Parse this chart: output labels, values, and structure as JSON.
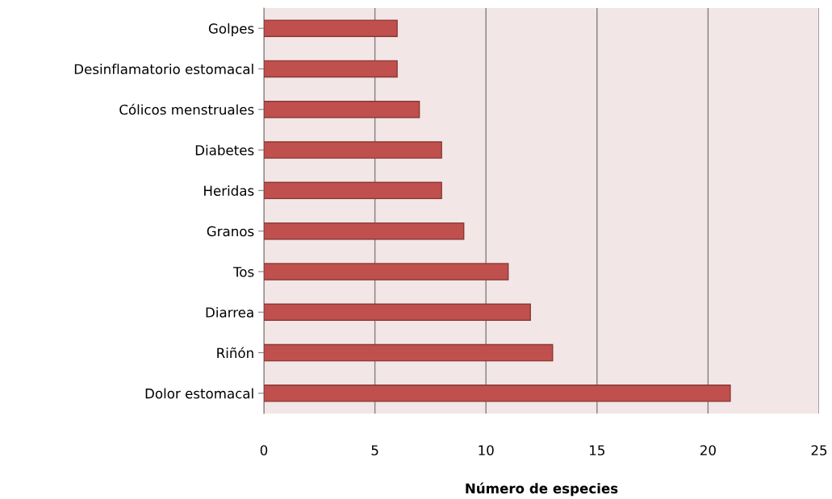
{
  "chart_data": {
    "type": "bar",
    "orientation": "horizontal",
    "xlabel": "Número de especies",
    "categories": [
      "Golpes",
      "Desinflamatorio estomacal",
      "Cólicos menstruales",
      "Diabetes",
      "Heridas",
      "Granos",
      "Tos",
      "Diarrea",
      "Riñón",
      "Dolor estomacal"
    ],
    "values": [
      6,
      6,
      7,
      8,
      8,
      9,
      11,
      12,
      13,
      21
    ],
    "color": "#c0504d",
    "xlim": [
      0,
      25
    ],
    "xticks": [
      0,
      5,
      10,
      15,
      20,
      25
    ],
    "grid": "x"
  }
}
